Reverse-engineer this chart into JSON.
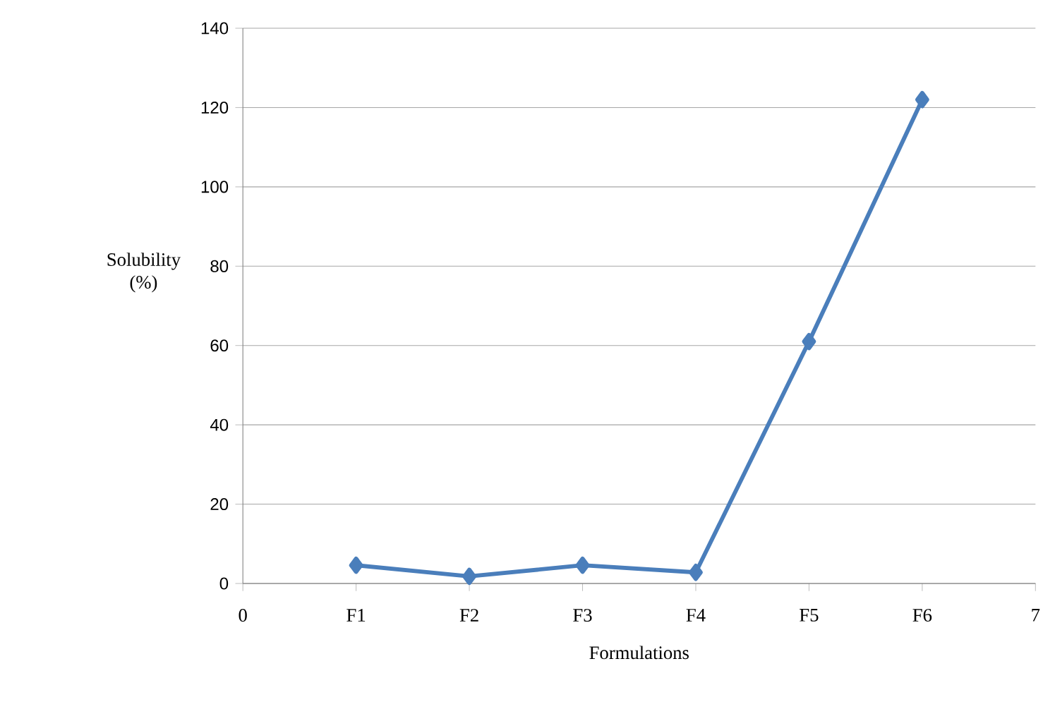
{
  "chart_data": {
    "type": "line",
    "xlabel": "Formulations",
    "ylabel": "Solubility (%)",
    "x": [
      1,
      2,
      3,
      4,
      5,
      6
    ],
    "series": [
      {
        "color": "#4a7ebb",
        "values": [
          4.6,
          1.8,
          4.6,
          2.8,
          61,
          122
        ]
      }
    ],
    "xlim": [
      0,
      7
    ],
    "xticks": [
      0,
      {
        "value": 1,
        "label": "F1"
      },
      {
        "value": 2,
        "label": "F2"
      },
      {
        "value": 3,
        "label": "F3"
      },
      {
        "value": 4,
        "label": "F4"
      },
      {
        "value": 5,
        "label": "F5"
      },
      {
        "value": 6,
        "label": "F6"
      },
      7
    ],
    "ylim": [
      0,
      140
    ],
    "yticks": [
      0,
      20,
      40,
      60,
      80,
      100,
      120,
      140
    ],
    "grid": "y",
    "marker": "diamond",
    "line_style": "solid"
  }
}
